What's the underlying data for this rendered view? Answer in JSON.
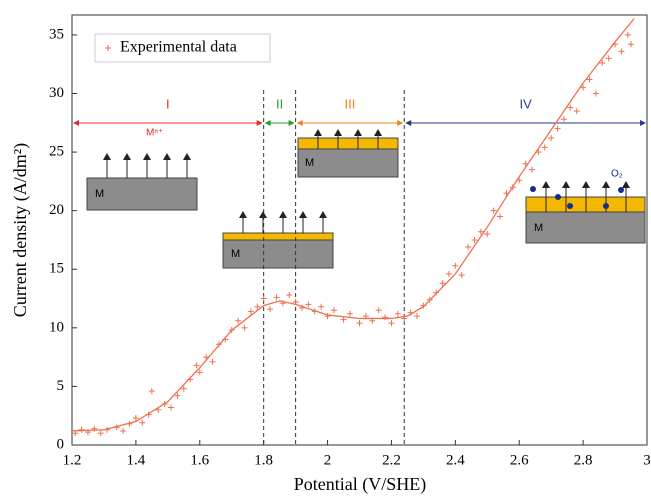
{
  "chart_data": {
    "type": "scatter",
    "xlabel": "Potential (V/SHE)",
    "ylabel": "Current density (A/dm²)",
    "xlim": [
      1.2,
      3.0
    ],
    "ylim": [
      0,
      36.7
    ],
    "xticks": [
      {
        "value": 1.2,
        "label": "1.2"
      },
      1.4,
      1.6,
      1.8,
      2,
      2.2,
      2.4,
      2.6,
      2.8,
      3
    ],
    "yticks": [
      0,
      5,
      10,
      15,
      20,
      25,
      30,
      35
    ],
    "legend": "upper left",
    "series": [
      {
        "name": "Experimental data",
        "color": "#f07050",
        "x": [
          1.21,
          1.23,
          1.25,
          1.27,
          1.29,
          1.31,
          1.34,
          1.36,
          1.38,
          1.4,
          1.42,
          1.44,
          1.45,
          1.47,
          1.49,
          1.51,
          1.53,
          1.55,
          1.57,
          1.59,
          1.6,
          1.62,
          1.64,
          1.66,
          1.68,
          1.7,
          1.72,
          1.74,
          1.76,
          1.78,
          1.8,
          1.82,
          1.84,
          1.86,
          1.88,
          1.9,
          1.92,
          1.94,
          1.96,
          1.98,
          2.0,
          2.02,
          2.05,
          2.07,
          2.1,
          2.12,
          2.14,
          2.16,
          2.18,
          2.2,
          2.22,
          2.24,
          2.26,
          2.28,
          2.3,
          2.32,
          2.34,
          2.36,
          2.38,
          2.4,
          2.42,
          2.44,
          2.46,
          2.48,
          2.5,
          2.52,
          2.54,
          2.56,
          2.58,
          2.6,
          2.62,
          2.64,
          2.66,
          2.68,
          2.7,
          2.72,
          2.74,
          2.76,
          2.78,
          2.8,
          2.82,
          2.84,
          2.86,
          2.88,
          2.9,
          2.92,
          2.94,
          2.95
        ],
        "values": [
          1.0,
          1.3,
          1.1,
          1.4,
          1.0,
          1.3,
          1.5,
          1.2,
          1.8,
          2.3,
          1.9,
          2.6,
          4.6,
          3.0,
          3.5,
          3.2,
          4.2,
          4.8,
          5.6,
          6.8,
          6.2,
          7.5,
          7.1,
          8.6,
          9.0,
          9.8,
          10.6,
          10.0,
          11.4,
          11.8,
          12.5,
          11.6,
          12.6,
          12.1,
          12.8,
          12.2,
          11.7,
          12.0,
          11.4,
          11.8,
          11.0,
          11.5,
          10.7,
          11.2,
          10.4,
          11.0,
          10.6,
          11.5,
          10.9,
          10.4,
          11.2,
          10.8,
          11.3,
          11.0,
          11.9,
          12.4,
          13.0,
          13.8,
          14.6,
          15.3,
          14.5,
          16.9,
          17.5,
          18.2,
          18.0,
          20.0,
          19.5,
          21.5,
          22.0,
          22.6,
          24.0,
          23.5,
          25.0,
          25.4,
          26.2,
          27.0,
          27.8,
          28.8,
          28.5,
          30.5,
          31.2,
          30.0,
          32.6,
          33.0,
          34.2,
          33.6,
          35.0,
          34.2
        ]
      }
    ],
    "fit": {
      "color": "#f07050",
      "x": [
        1.2,
        1.3,
        1.4,
        1.5,
        1.6,
        1.7,
        1.8,
        1.85,
        1.9,
        2.0,
        2.1,
        2.2,
        2.25,
        2.3,
        2.4,
        2.5,
        2.6,
        2.7,
        2.8,
        2.9,
        2.96
      ],
      "values": [
        1.2,
        1.3,
        2.0,
        3.7,
        6.6,
        9.8,
        11.9,
        12.3,
        12.0,
        11.1,
        10.8,
        10.8,
        11.0,
        11.8,
        14.6,
        18.6,
        22.9,
        26.9,
        30.9,
        34.4,
        36.4
      ]
    },
    "boundaries": [
      1.8,
      1.9,
      2.24
    ],
    "regions": [
      {
        "label": "I",
        "from": 1.2,
        "to": 1.8,
        "color": "#e03030"
      },
      {
        "label": "II",
        "from": 1.8,
        "to": 1.9,
        "color": "#2a9d2a"
      },
      {
        "label": "III",
        "from": 1.9,
        "to": 2.24,
        "color": "#f08020"
      },
      {
        "label": "IV",
        "from": 2.24,
        "to": 3.0,
        "color": "#2a3a8a"
      }
    ],
    "inset_labels": [
      "M",
      "M",
      "M",
      "M"
    ],
    "annotations": [
      "Mⁿ⁺",
      "O₂"
    ]
  }
}
